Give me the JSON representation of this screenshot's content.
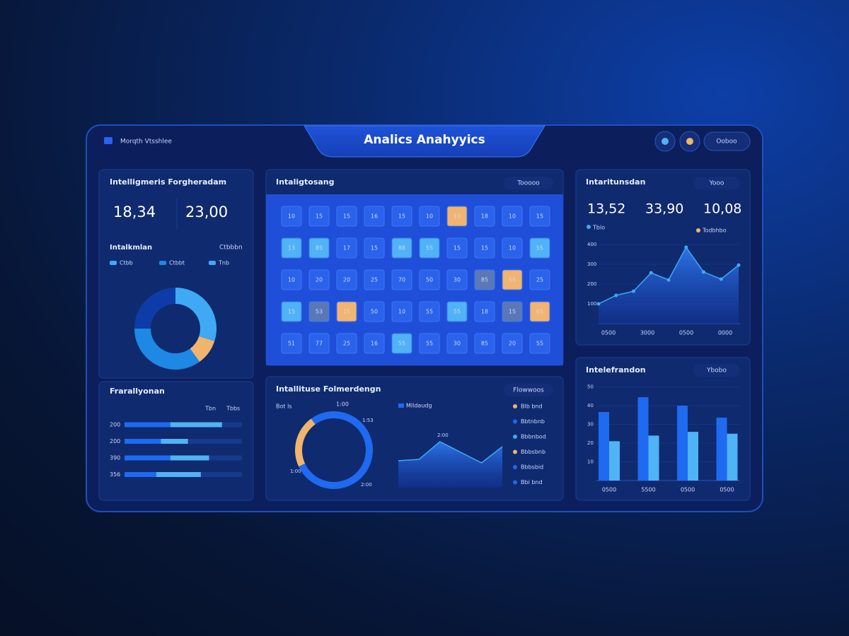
{
  "header": {
    "brand": "Morqth Vtsshlee",
    "title": "Analics Anahyyics",
    "menu": "Ooboo"
  },
  "summary": {
    "title": "Intelligmeris Forgheradam",
    "stats": [
      "18,34",
      "23,00"
    ],
    "subtitle": "Intalkmlan",
    "tag": "Ctbbbn",
    "legend": [
      "Ctbb",
      "Ctbbt",
      "Tnb"
    ],
    "donut": {
      "values": [
        30,
        10,
        35,
        25
      ],
      "colors": [
        "#3fa9f5",
        "#f0b46e",
        "#1e88e5",
        "#0d3ca8"
      ]
    }
  },
  "progress": {
    "title": "Frarallyonan",
    "tags": [
      "Tbn",
      "Tbbs"
    ],
    "rows": [
      "200",
      "200",
      "390",
      "356"
    ],
    "dark": [
      39,
      31,
      39,
      27
    ],
    "light": [
      44,
      23,
      33,
      38
    ],
    "colors": [
      "#1e6af0",
      "#4fb3f5"
    ]
  },
  "heatmap": {
    "title": "Intaligtosang",
    "button": "Tooooo",
    "labels": [
      [
        "10",
        "15",
        "15",
        "16",
        "15",
        "10",
        "10",
        "18",
        "10",
        "15"
      ],
      [
        "13",
        "85",
        "17",
        "15",
        "88",
        "55",
        "15",
        "15",
        "10",
        "55"
      ],
      [
        "10",
        "20",
        "20",
        "25",
        "70",
        "50",
        "30",
        "85",
        "55",
        "25"
      ],
      [
        "15",
        "53",
        "15",
        "50",
        "10",
        "55",
        "55",
        "18",
        "15",
        "65"
      ],
      [
        "51",
        "77",
        "25",
        "16",
        "55",
        "55",
        "30",
        "85",
        "20",
        "55"
      ]
    ],
    "states": [
      [
        0,
        0,
        0,
        0,
        0,
        0,
        2,
        0,
        0,
        0
      ],
      [
        1,
        1,
        0,
        0,
        1,
        1,
        0,
        0,
        0,
        1
      ],
      [
        0,
        0,
        0,
        0,
        0,
        0,
        0,
        3,
        2,
        0
      ],
      [
        1,
        3,
        2,
        0,
        0,
        0,
        1,
        0,
        3,
        2
      ],
      [
        0,
        0,
        0,
        0,
        1,
        0,
        0,
        0,
        0,
        0
      ]
    ],
    "state_colors": [
      "#2a62ec",
      "#4fb3f5",
      "#f2b46e",
      "#5a78b8"
    ]
  },
  "flow": {
    "title": "Intallituse Folmerdengn",
    "button": "Flowwoos",
    "ring_caption": "Bot ls",
    "ring_top": "1:00",
    "ring_labels": [
      "1:53",
      "1:00",
      "2:00"
    ],
    "ring": {
      "values": [
        22,
        78
      ],
      "colors": [
        "#f0b46e",
        "#1e6af0"
      ]
    },
    "area_label": "Mlldaudg",
    "area_peak": "2:00",
    "area": [
      38,
      40,
      65,
      50,
      35,
      58
    ],
    "ylim": [
      0,
      80
    ],
    "list": [
      {
        "label": "Blb bnd",
        "color": "#f0b46e"
      },
      {
        "label": "Bbtnbnb",
        "color": "#1e6af0"
      },
      {
        "label": "Bbbnbod",
        "color": "#3fa9f5"
      },
      {
        "label": "Bbbsbnb",
        "color": "#f0b46e"
      },
      {
        "label": "Bbbsbid",
        "color": "#1e6af0"
      },
      {
        "label": "Bbi bnd",
        "color": "#1e6af0"
      }
    ]
  },
  "trend": {
    "title": "Intaritunsdan",
    "button": "Yooo",
    "stats": [
      "13,52",
      "33,90",
      "10,08"
    ],
    "stat_tags": [
      "Tblo",
      "Todbhbo"
    ],
    "ylim": [
      0,
      400
    ],
    "yticks": [
      100,
      200,
      300,
      400
    ],
    "categories": [
      "0500",
      "3000",
      "0500",
      "0000"
    ],
    "values": [
      100,
      143,
      164,
      257,
      221,
      386,
      261,
      225,
      296
    ],
    "color": "#3fa9f5"
  },
  "bars": {
    "title": "Intelefrandon",
    "button": "Ybobo",
    "ylim": [
      0,
      50
    ],
    "yticks": [
      10,
      20,
      30,
      40,
      50
    ],
    "categories": [
      "0500",
      "5500",
      "0500",
      "0500"
    ],
    "series": [
      {
        "color": "#1e6af0",
        "values": [
          36.6,
          44.5,
          40,
          33.6
        ]
      },
      {
        "color": "#4fb3f5",
        "values": [
          21,
          24,
          26,
          25
        ]
      }
    ]
  }
}
